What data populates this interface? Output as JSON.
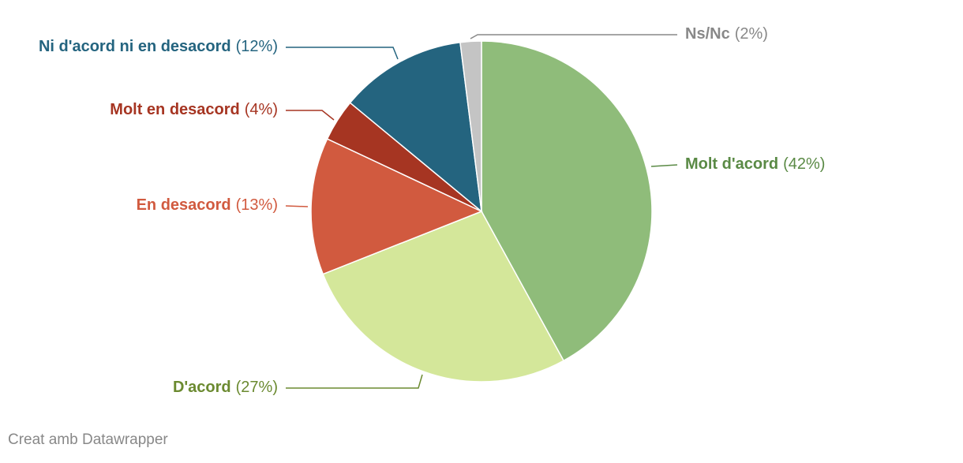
{
  "chart_data": {
    "type": "pie",
    "categories": [
      "Molt d'acord",
      "D'acord",
      "En desacord",
      "Molt en desacord",
      "Ni d'acord ni en desacord",
      "Ns/Nc"
    ],
    "values": [
      42,
      27,
      13,
      4,
      12,
      2
    ],
    "value_labels": [
      "(42%)",
      "(27%)",
      "(13%)",
      "(4%)",
      "(12%)",
      "(2%)"
    ],
    "colors": [
      "#8fbc7a",
      "#d4e79a",
      "#d15a3f",
      "#a63522",
      "#24647f",
      "#c4c4c4"
    ],
    "label_colors": [
      "#5a8a45",
      "#6b8a30",
      "#d15a3f",
      "#a63522",
      "#24647f",
      "#888888"
    ],
    "credit": "Creat amb Datawrapper"
  }
}
